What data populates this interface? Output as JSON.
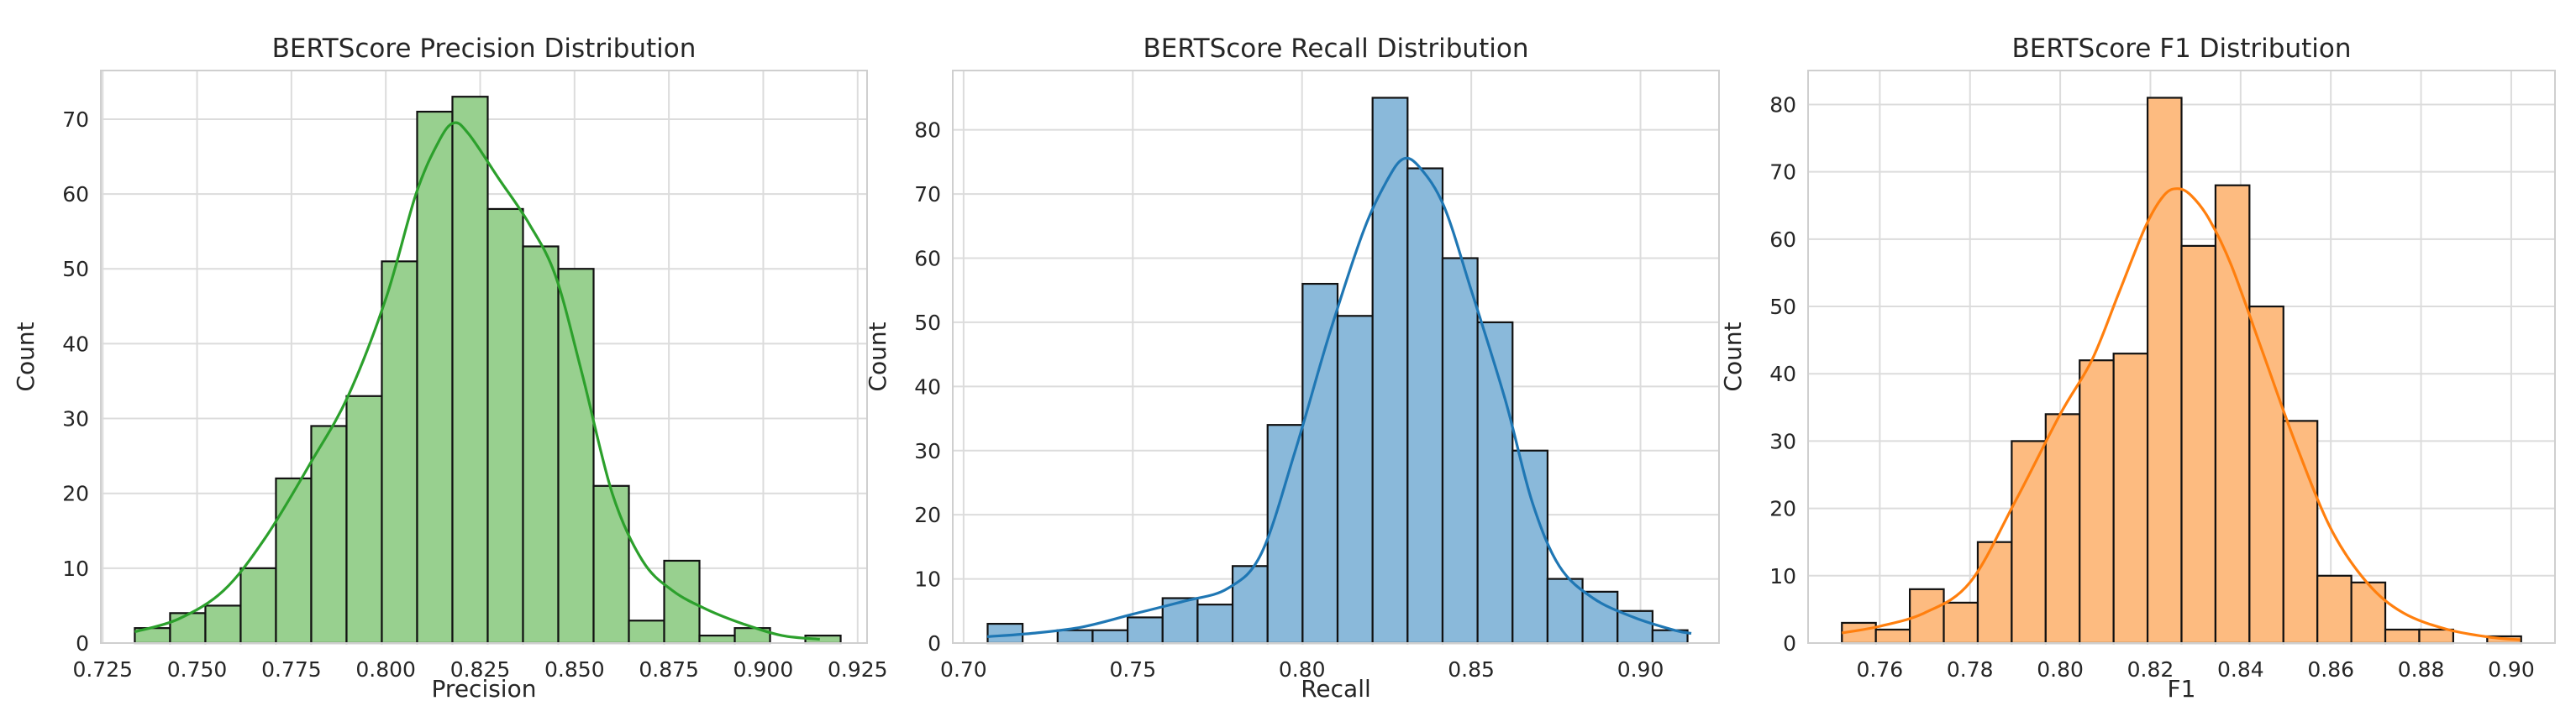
{
  "chart_data": [
    {
      "type": "histogram",
      "title": "BERTScore Precision Distribution",
      "xlabel": "Precision",
      "ylabel": "Count",
      "xlim": [
        0.7245,
        0.9275
      ],
      "ylim": [
        0,
        76.5
      ],
      "xticks": [
        0.725,
        0.75,
        0.775,
        0.8,
        0.825,
        0.85,
        0.875,
        0.9,
        0.925
      ],
      "xtick_labels": [
        "0.725",
        "0.750",
        "0.775",
        "0.800",
        "0.825",
        "0.850",
        "0.875",
        "0.900",
        "0.925"
      ],
      "yticks": [
        0,
        10,
        20,
        30,
        40,
        50,
        60,
        70
      ],
      "ytick_labels": [
        "0",
        "10",
        "20",
        "30",
        "40",
        "50",
        "60",
        "70"
      ],
      "bin_start": 0.7335,
      "bin_width": 0.00935,
      "values": [
        2,
        4,
        5,
        10,
        22,
        29,
        33,
        51,
        71,
        73,
        58,
        53,
        50,
        21,
        3,
        11,
        1,
        2,
        0,
        1
      ],
      "kde_x": [
        0.7335,
        0.745,
        0.757,
        0.768,
        0.78,
        0.79,
        0.8,
        0.808,
        0.814,
        0.818,
        0.822,
        0.83,
        0.838,
        0.845,
        0.852,
        0.86,
        0.868,
        0.876,
        0.885,
        0.895,
        0.905,
        0.915
      ],
      "kde_y": [
        1.5,
        3.2,
        7,
        14,
        24,
        33,
        46,
        60,
        67,
        69.5,
        68,
        62,
        56,
        49,
        36,
        20,
        11,
        7,
        4.5,
        2.5,
        1,
        0.5
      ],
      "grid": true,
      "colors": {
        "bar": "#98d08f",
        "edge": "#111111",
        "kde": "#2ca02c"
      }
    },
    {
      "type": "histogram",
      "title": "BERTScore Recall Distribution",
      "xlabel": "Recall",
      "ylabel": "Count",
      "xlim": [
        0.6968,
        0.9232
      ],
      "ylim": [
        0,
        89.25
      ],
      "xticks": [
        0.7,
        0.75,
        0.8,
        0.85,
        0.9
      ],
      "xtick_labels": [
        "0.70",
        "0.75",
        "0.80",
        "0.85",
        "0.90"
      ],
      "yticks": [
        0,
        10,
        20,
        30,
        40,
        50,
        60,
        70,
        80
      ],
      "ytick_labels": [
        "0",
        "10",
        "20",
        "30",
        "40",
        "50",
        "60",
        "70",
        "80"
      ],
      "bin_start": 0.7071,
      "bin_width": 0.01034,
      "values": [
        3,
        0,
        2,
        2,
        4,
        7,
        6,
        12,
        34,
        56,
        51,
        85,
        74,
        60,
        50,
        30,
        10,
        8,
        5,
        2
      ],
      "kde_x": [
        0.707,
        0.72,
        0.735,
        0.75,
        0.765,
        0.778,
        0.788,
        0.798,
        0.808,
        0.818,
        0.825,
        0.83,
        0.835,
        0.842,
        0.85,
        0.86,
        0.868,
        0.876,
        0.886,
        0.898,
        0.91,
        0.915
      ],
      "kde_y": [
        1,
        1.5,
        2.5,
        4.5,
        6.5,
        8.5,
        14,
        30,
        48,
        64,
        72,
        75.5,
        74,
        68,
        55,
        38,
        22,
        12,
        7,
        4,
        2,
        1.5
      ],
      "grid": true,
      "colors": {
        "bar": "#8ab9da",
        "edge": "#111111",
        "kde": "#1f77b4"
      }
    },
    {
      "type": "histogram",
      "title": "BERTScore F1 Distribution",
      "xlabel": "F1",
      "ylabel": "Count",
      "xlim": [
        0.7441,
        0.9097
      ],
      "ylim": [
        0,
        85.05
      ],
      "xticks": [
        0.76,
        0.78,
        0.8,
        0.82,
        0.84,
        0.86,
        0.88,
        0.9
      ],
      "xtick_labels": [
        "0.76",
        "0.78",
        "0.80",
        "0.82",
        "0.84",
        "0.86",
        "0.88",
        "0.90"
      ],
      "yticks": [
        0,
        10,
        20,
        30,
        40,
        50,
        60,
        70,
        80
      ],
      "ytick_labels": [
        "0",
        "10",
        "20",
        "30",
        "40",
        "50",
        "60",
        "70",
        "80"
      ],
      "bin_start": 0.7516,
      "bin_width": 0.00753,
      "values": [
        3,
        2,
        8,
        6,
        15,
        30,
        34,
        42,
        43,
        81,
        59,
        68,
        50,
        33,
        10,
        9,
        2,
        2,
        0,
        1
      ],
      "kde_x": [
        0.7516,
        0.76,
        0.77,
        0.78,
        0.79,
        0.8,
        0.807,
        0.813,
        0.819,
        0.823,
        0.826,
        0.829,
        0.833,
        0.838,
        0.845,
        0.852,
        0.86,
        0.868,
        0.876,
        0.886,
        0.896,
        0.902
      ],
      "kde_y": [
        1.5,
        2.5,
        4.5,
        9,
        21,
        34,
        42,
        52,
        62,
        66.5,
        67.5,
        66.5,
        63,
        56,
        43,
        30,
        17,
        9,
        4.5,
        2,
        0.8,
        0.5
      ],
      "grid": true,
      "colors": {
        "bar": "#fdbb80",
        "edge": "#111111",
        "kde": "#ff7f0e"
      }
    }
  ]
}
